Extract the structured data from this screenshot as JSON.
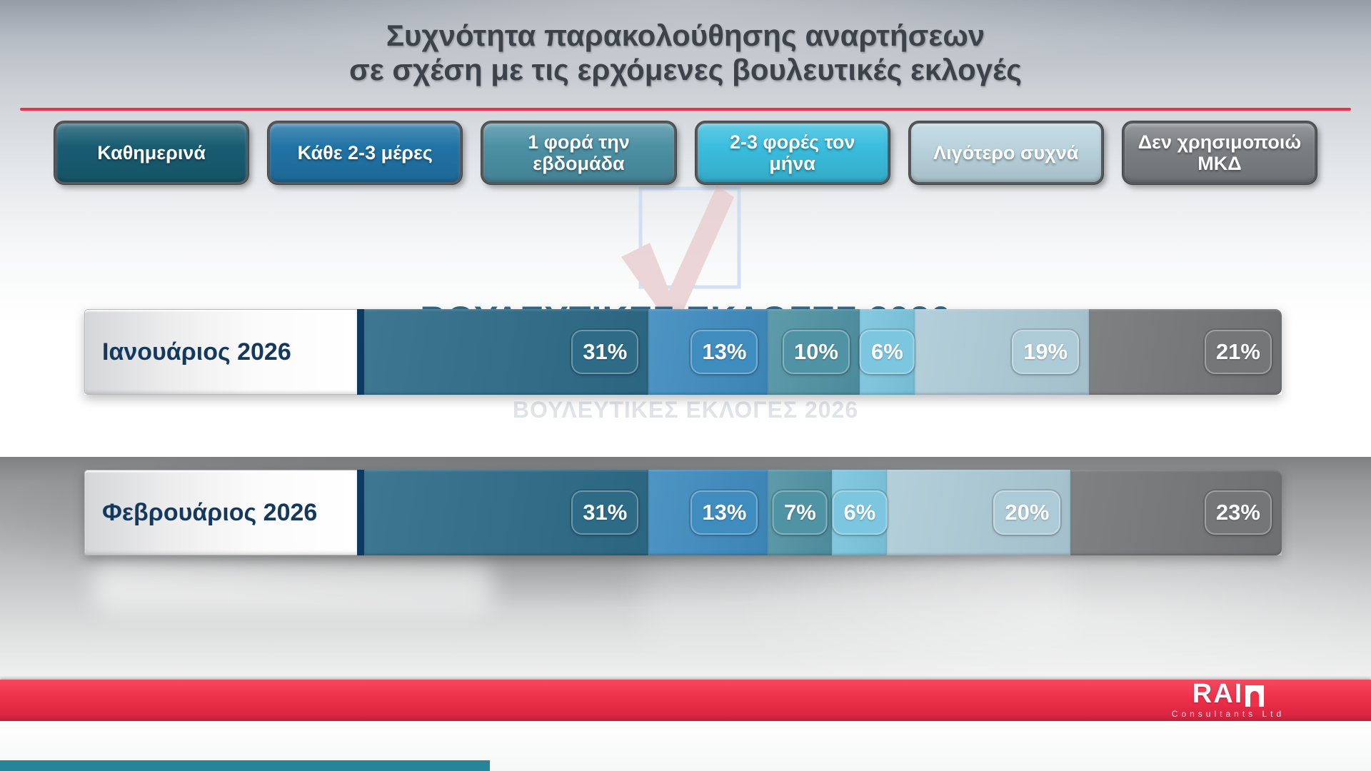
{
  "title": {
    "line1": "Συχνότητα παρακολούθησης αναρτήσεων",
    "line2": "σε σχέση με τις ερχόμενες βουλευτικές εκλογές"
  },
  "watermark": {
    "ballot_text": "ΒΟΥΛΕΥΤΙΚΕΣ ΕΚΛΟΓΕΣ 2026"
  },
  "chart_data": {
    "type": "bar",
    "orientation": "horizontal",
    "stacked": true,
    "unit": "%",
    "legend_position": "top",
    "categories": [
      "Ιανουάριος 2026",
      "Φεβρουάριος 2026"
    ],
    "series": [
      {
        "name": "Καθημερινά",
        "legend_color": "#185c72",
        "bar_color": "#2d6b87",
        "values": [
          31,
          31
        ]
      },
      {
        "name": "Κάθε 2-3 μέρες",
        "legend_color": "#2073a6",
        "bar_color": "#3f8cbf",
        "values": [
          13,
          13
        ]
      },
      {
        "name": "1 φορά την εβδομάδα",
        "legend_color": "#4b90a4",
        "bar_color": "#5093a4",
        "values": [
          10,
          7
        ]
      },
      {
        "name": "2-3 φορές τον μήνα",
        "legend_color": "#3abdde",
        "bar_color": "#7cc6df",
        "values": [
          6,
          6
        ]
      },
      {
        "name": "Λιγότερο συχνά",
        "legend_color": "#b9d3dd",
        "bar_color": "#adcbd7",
        "values": [
          19,
          20
        ]
      },
      {
        "name": "Δεν χρησιμοποιώ ΜΚΔ",
        "legend_color": "#7c7f82",
        "bar_color": "#747678",
        "values": [
          21,
          23
        ]
      }
    ]
  },
  "colors": {
    "title_rule": "#f1304b",
    "accent_bar": "#27859a",
    "footer_stripe": "#ee3049"
  },
  "footer": {
    "brand": "RAI",
    "brand_sub": "Consultants Ltd"
  }
}
